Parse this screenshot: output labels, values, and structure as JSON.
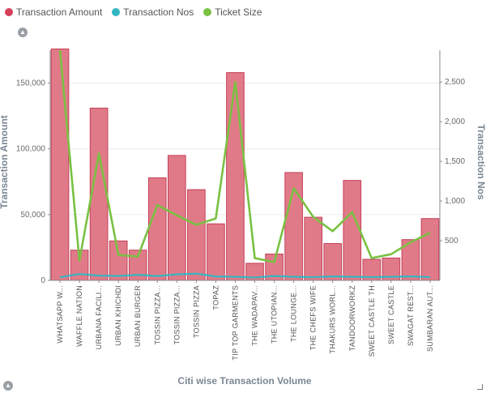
{
  "legend": [
    {
      "label": "Transaction Amount",
      "color": "#d6405a"
    },
    {
      "label": "Transaction Nos",
      "color": "#34b6c0"
    },
    {
      "label": "Ticket Size",
      "color": "#7ac143"
    }
  ],
  "chart_data": {
    "type": "bar",
    "xlabel": "Citi wise Transaction Volume",
    "ylabel": "Transaction Amount",
    "y2label": "Transaction Nos",
    "ylim": [
      0,
      175000
    ],
    "y2lim": [
      0,
      2900
    ],
    "yticks": [
      "0",
      "50,000",
      "100,000",
      "150,000"
    ],
    "y2ticks": [
      "500",
      "1,000",
      "1,500",
      "2,000",
      "2,500"
    ],
    "categories": [
      "WHATSAPP W...",
      "WAFFLE NATION",
      "URBANA FACILI...",
      "URBAN KHICHDI",
      "URBAN BURGER",
      "TOSSIN PIZZA...",
      "TOSSIN PIZZA...",
      "TOSSIN PIZZA",
      "TOPAZ",
      "TIP TOP GARMENTS",
      "THE WADAPAV...",
      "THE UTOPIAN...",
      "THE LOUNGE...",
      "THE CHEFS WIFE",
      "THAKURS WORL...",
      "TANDOORWORKZ",
      "SWEET CASTLE TH",
      "SWEET CASTLE",
      "SWAGAT REST...",
      "SUMBARAN AUT..."
    ],
    "series": [
      {
        "name": "Transaction Amount",
        "type": "bar",
        "axis": "left",
        "color": "#d6405a",
        "values": [
          176000,
          23000,
          131000,
          30000,
          23000,
          78000,
          95000,
          69000,
          43000,
          158000,
          13000,
          20000,
          82000,
          48000,
          28000,
          76000,
          16000,
          17000,
          31000,
          47000
        ]
      },
      {
        "name": "Transaction Nos",
        "type": "line",
        "axis": "right",
        "color": "#34b6c0",
        "values": [
          40,
          80,
          60,
          55,
          70,
          55,
          75,
          85,
          50,
          45,
          35,
          55,
          45,
          40,
          50,
          45,
          40,
          45,
          50,
          40
        ]
      },
      {
        "name": "Ticket Size",
        "type": "line",
        "axis": "right",
        "color": "#7ac143",
        "values": [
          2900,
          250,
          1600,
          320,
          300,
          950,
          820,
          700,
          780,
          2500,
          280,
          230,
          1160,
          800,
          620,
          860,
          280,
          330,
          480,
          600
        ]
      }
    ]
  }
}
